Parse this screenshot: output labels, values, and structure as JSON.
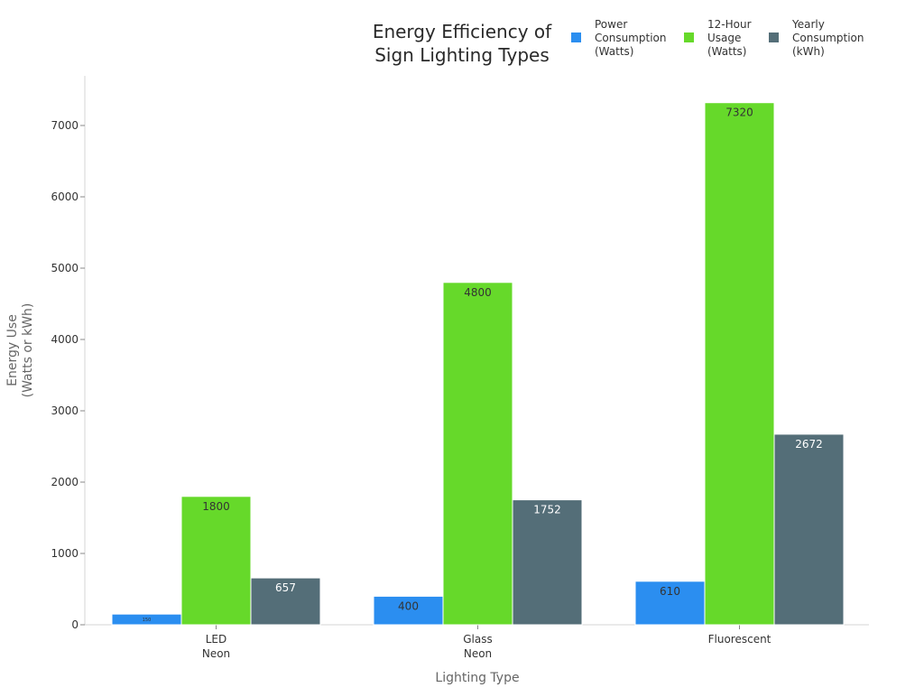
{
  "chart_data": {
    "type": "bar",
    "title_lines": [
      "Energy Efficiency of",
      "Sign Lighting Types"
    ],
    "xlabel": "Lighting Type",
    "ylabel_lines": [
      "Energy Use",
      "(Watts or kWh)"
    ],
    "categories": [
      {
        "lines": [
          "LED",
          "Neon"
        ]
      },
      {
        "lines": [
          "Glass",
          "Neon"
        ]
      },
      {
        "lines": [
          "Fluorescent"
        ]
      }
    ],
    "series": [
      {
        "name_lines": [
          "Power",
          "Consumption",
          "(Watts)"
        ],
        "color": "#2b8ef0",
        "label_color": "#333333",
        "values": [
          150,
          400,
          610
        ]
      },
      {
        "name_lines": [
          "12-Hour",
          "Usage",
          "(Watts)"
        ],
        "color": "#66d92a",
        "label_color": "#333333",
        "values": [
          1800,
          4800,
          7320
        ]
      },
      {
        "name_lines": [
          "Yearly",
          "Consumption",
          "(kWh)"
        ],
        "color": "#546e78",
        "label_color": "#ffffff",
        "values": [
          657,
          1752,
          2672
        ]
      }
    ],
    "ylim": [
      0,
      7600
    ],
    "yticks": [
      0,
      1000,
      2000,
      3000,
      4000,
      5000,
      6000,
      7000
    ],
    "legend_position": "top-right",
    "grid": false
  }
}
